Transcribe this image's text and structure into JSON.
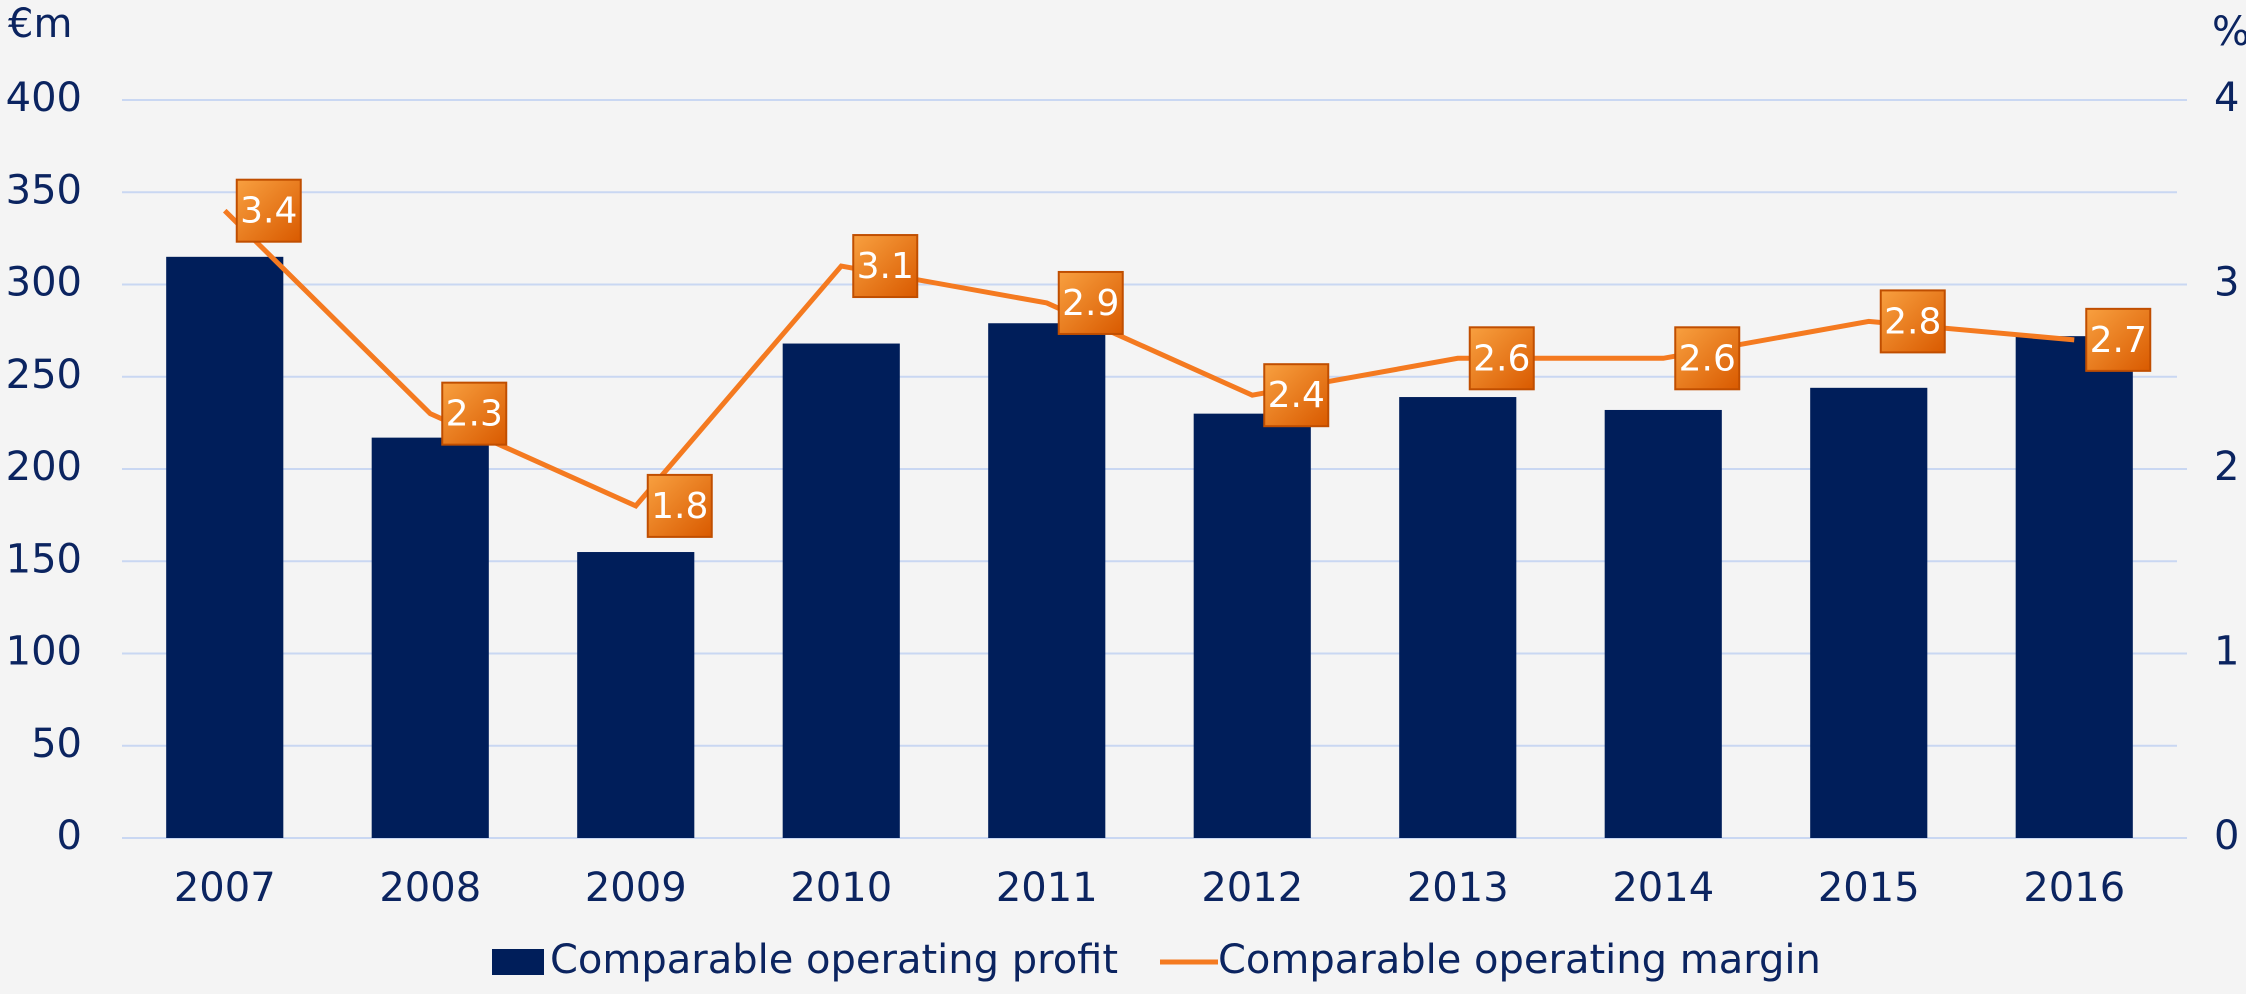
{
  "chart_data": {
    "type": "bar",
    "y_unit": "€m",
    "y2_unit": "%",
    "categories": [
      "2007",
      "2008",
      "2009",
      "2010",
      "2011",
      "2012",
      "2013",
      "2014",
      "2015",
      "2016"
    ],
    "series": [
      {
        "name": "Comparable operating profit",
        "color": "#001e5a",
        "type": "bar",
        "values": [
          315,
          217,
          155,
          268,
          279,
          230,
          239,
          232,
          244,
          272
        ]
      },
      {
        "name": "Comparable operating margin",
        "color": "#f47a20",
        "type": "line",
        "axis": "y2",
        "values": [
          3.4,
          2.3,
          1.8,
          3.1,
          2.9,
          2.4,
          2.6,
          2.6,
          2.8,
          2.7
        ]
      }
    ],
    "ylim": [
      0,
      400
    ],
    "yticks": [
      0,
      50,
      100,
      150,
      200,
      250,
      300,
      350,
      400
    ],
    "y2lim": [
      0,
      4
    ],
    "y2ticks": [
      0,
      1,
      2,
      3,
      4
    ],
    "grid": true,
    "legend": "bottom"
  }
}
